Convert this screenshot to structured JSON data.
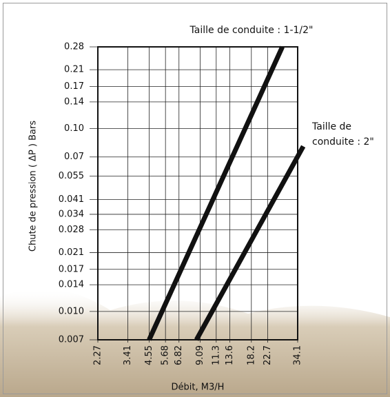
{
  "chart_data": {
    "type": "line",
    "xlabel": "Débit, M3/H",
    "ylabel": "Chute de pression ( ΔP )  Bars",
    "xscale": "log",
    "yscale": "log",
    "grid": true,
    "xlim": [
      2.27,
      34.1
    ],
    "ylim": [
      0.007,
      0.28
    ],
    "xticks": [
      2.27,
      3.41,
      4.55,
      5.68,
      6.82,
      9.09,
      11.3,
      13.6,
      18.2,
      22.7,
      34.1
    ],
    "yticks": [
      0.007,
      {
        "value": 0.01,
        "label": "0.010"
      },
      0.014,
      0.017,
      0.021,
      0.028,
      0.034,
      0.041,
      0.055,
      0.07,
      {
        "value": 0.1,
        "label": "0.10"
      },
      0.14,
      0.17,
      0.21,
      0.28
    ],
    "series": [
      {
        "color": "#111111",
        "x": [
          4.55,
          27.7
        ],
        "values": [
          0.007,
          0.28
        ]
      },
      {
        "color": "#111111",
        "x": [
          8.64,
          36.8
        ],
        "values": [
          0.007,
          0.08
        ]
      }
    ],
    "annotations": [
      [
        "Taille de conduite : 1-1/2\""
      ],
      [
        "Taille de",
        "conduite : 2\""
      ]
    ]
  }
}
